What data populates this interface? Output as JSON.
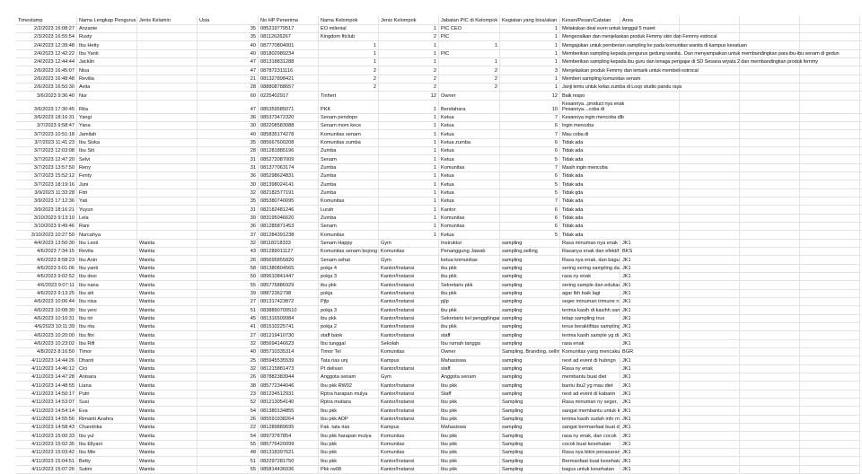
{
  "headers": [
    "Timestamp",
    "Nama Lengkap Pengurus",
    "Jenis Kelamin",
    "Usia",
    "No HP Penerima",
    "Nama Kelompok",
    "Jenis Kelompok",
    "Jabatan PIC di Kelompok",
    "Kegiatan yang bisa/akan",
    "Kesan/Pesan/Catatan",
    "Area"
  ],
  "rows": [
    [
      "2/2/2023 16:08:27",
      "Anzanie",
      "",
      "35",
      "085219779517",
      "EO milenial",
      "1",
      "PIC CEO",
      "1",
      "Melakukan deal even untuk tanggal 5 maret",
      ""
    ],
    [
      "2/3/2023 16:55:54",
      "Rusty",
      "",
      "35",
      "08112626267",
      "Kingdom fitclub",
      "2",
      "PIC",
      "1",
      "Mengenalkan dan menjelaskan produk Femmy skin dan Femmy estrocal",
      ""
    ],
    [
      "2/4/2023 12:39:48",
      "Ibu Hetty",
      "",
      "40",
      "087770804001",
      "1",
      "1",
      "1",
      "1",
      "Mengajukan untuk pemberian sampling ke pada komunitas wanita di kampus kesatuan",
      ""
    ],
    [
      "2/4/2023 12:42:22",
      "Ibu Yanti",
      "",
      "40",
      "081802989234",
      "1",
      "1",
      "PIC",
      "1",
      "Memberikan sampling kepada pengurus gedung wanita.. Dan menyampaikan untuk membandingkan para ibu-ibu senam di gedun",
      ""
    ],
    [
      "2/4/2023 12:44:44",
      "Jacklin",
      "",
      "47",
      "081318831288",
      "1",
      "1",
      "1",
      "1",
      "Memberikan sampling kepada ibu guru dan tenaga pengajar di SD Sesana wiyata 2 dan membandingkan produk femmy",
      ""
    ],
    [
      "2/6/2023 16:45:07",
      "Nisa",
      "",
      "47",
      "087872311116",
      "2",
      "2",
      "2",
      "3",
      "Menjelaskan produk Femmy dan tertarik untuk membeli estrocal",
      ""
    ],
    [
      "2/6/2023 16:48:48",
      "Revilia",
      "",
      "21",
      "081327898421",
      "2",
      "2",
      "2",
      "1",
      "Memberi sampling komunitas senam",
      ""
    ],
    [
      "2/6/2023 16:50:30",
      "Avita",
      "",
      "28",
      "088808788657",
      "2",
      "2",
      "2",
      "1",
      "Janji temu untuk kelas zumba di Loop studio pandu raya",
      ""
    ],
    [
      "3/6/2023 9:36:40",
      "Nur",
      "",
      "60",
      "0225402917",
      "Tinhert",
      "12",
      "Owner",
      "12",
      "Baik respo",
      ""
    ],
    [
      "3/6/2023 17:30:45",
      "Rita",
      "",
      "47",
      "085359585071",
      "PKK",
      "1",
      "Bendahara",
      "10",
      "Kesannya...product nya enak\nPesannya....coba di",
      ""
    ],
    [
      "3/6/2023 18:16:31",
      "Yangi",
      "",
      "36",
      "085373472320",
      "Senam pendopo",
      "1",
      "Ketua",
      "7",
      "Kesannya ingin mencoba dlb",
      ""
    ],
    [
      "3/7/2023 9:58:47",
      "Yana",
      "",
      "30",
      "082208583088",
      "Senam mom kece",
      "1",
      "Ketua",
      "6",
      "Ingin mencoba",
      ""
    ],
    [
      "3/7/2023 10:51:18",
      "Jamilah",
      "",
      "40",
      "085835174278",
      "Komunitas senam",
      "1",
      "Ketua",
      "7",
      "Mau coba di",
      ""
    ],
    [
      "3/7/2023 11:41:23",
      "Ibu Siska",
      "",
      "35",
      "085667600208",
      "Komunitas zumba",
      "1",
      "Ketua zumba",
      "6",
      "Tidak ada",
      ""
    ],
    [
      "3/7/2023 12:03:08",
      "Ibu Siti",
      "",
      "28",
      "081281885196",
      "Zumba",
      "1",
      "Ketua",
      "6",
      "Tidak ada",
      ""
    ],
    [
      "3/7/2023 12:47:20",
      "Selvi",
      "",
      "31",
      "085272087009",
      "Senam",
      "1",
      "Ketua",
      "5",
      "Tidak ada",
      ""
    ],
    [
      "3/7/2023 13:57:50",
      "Reny",
      "",
      "31",
      "081377063174",
      "Zumba",
      "1",
      "Komunitas",
      "7",
      "Masih ingin mencoba",
      ""
    ],
    [
      "3/7/2023 15:52:12",
      "Fenty",
      "",
      "36",
      "085298624831",
      "Zumba",
      "1",
      "Ketua",
      "6",
      "Tidak ada",
      ""
    ],
    [
      "3/7/2023 18:19:16",
      "Juni",
      "",
      "30",
      "081398024141",
      "Zumba",
      "1",
      "Ketua",
      "5",
      "Tidak ada",
      ""
    ],
    [
      "3/9/2023 11:33:28",
      "Fitri",
      "",
      "32",
      "082182577191",
      "Zumba",
      "1",
      "Ketua",
      "5",
      "Tidak qda",
      ""
    ],
    [
      "3/9/2023 17:12:36",
      "Yati",
      "",
      "35",
      "085380740095",
      "Komunitas",
      "1",
      "Ketua",
      "7",
      "Tidak ada",
      ""
    ],
    [
      "3/9/2023 18:16:21",
      "Yuyun",
      "",
      "31",
      "082182481246",
      "Lurah",
      "1",
      "Kantor",
      "6",
      "Tidak ada",
      ""
    ],
    [
      "3/10/2023 9:13:10",
      "Lela",
      "",
      "30",
      "083195046620",
      "Zumba",
      "1",
      "Komunitas",
      "6",
      "Tidak ada",
      ""
    ],
    [
      "3/10/2023 9:49:46",
      "Rani",
      "",
      "36",
      "081285871453",
      "Senam",
      "1",
      "Komunitas",
      "6",
      "Tidak ada",
      ""
    ],
    [
      "3/10/2023 10:27:50",
      "Nurcahya",
      "",
      "37",
      "081284391238",
      "Komunitas",
      "1",
      "Ketua",
      "5",
      "Tidak ada",
      ""
    ],
    [
      "4/4/2023 13:50:30",
      "Ibu Lesti",
      "Wanita",
      "32",
      "08118218333",
      "Senam Happy",
      "Gym",
      "Instruktur",
      "sampling",
      "Rasa minuman nya enak",
      "JK1"
    ],
    [
      "4/6/2023 7:34:15",
      "Revita",
      "Wanita",
      "43",
      "081289011127",
      "Komunitas senam bojong",
      "Komunitas",
      "Penanggung Jawab",
      "sampling,selling",
      "Rasanya enak dan efektif",
      "BKS"
    ],
    [
      "4/6/2023 8:58:23",
      "Ibu Anin",
      "Wanita",
      "26",
      "085695855820",
      "Senam sehat",
      "Gym",
      "ketua komunitas",
      "sampling",
      "Rasa nya enak, dan bagus",
      "JK1"
    ],
    [
      "4/6/2023 9:01:06",
      "Ibu yanti",
      "Wanita",
      "58",
      "081380804565",
      "pokja 4",
      "Kantor/Instansi",
      "ibu pkk",
      "sampling",
      "sering sering sampling dan",
      "JK1"
    ],
    [
      "4/6/2023 9:02:52",
      "Ibu desi",
      "Wanita",
      "50",
      "089610841447",
      "pokja 3",
      "Kantor/Instansi",
      "ibu pkk",
      "sampling",
      "rasa ny enak",
      "JK1"
    ],
    [
      "4/6/2023 9:07:11",
      "Ibu nana",
      "Wanita",
      "55",
      "085776886929",
      "ibu pkk",
      "Kantor/Instansi",
      "Sekretaris pkk",
      "sampling",
      "sering sample dan edukasi",
      "JK1"
    ],
    [
      "4/6/2023 9:13:25",
      "Ibu siti",
      "Wanita",
      "39",
      "08872362798",
      "pokja",
      "Kantor/Instansi",
      "ibu pkk",
      "sampling",
      "agar lbh baik lagi",
      "JK1"
    ],
    [
      "4/6/2023 10:06:44",
      "Ibu nisa",
      "Wanita",
      "27",
      "081317423872",
      "Pjlp",
      "Kantor/Instansi",
      "pjlp",
      "sampling",
      "seger minuman trimune n",
      "JK1"
    ],
    [
      "4/6/2023 10:08:30",
      "Ibu yeni",
      "Wanita",
      "51",
      "0838890700510",
      "pokja 3",
      "Kantor/Instansi",
      "ibu pkk",
      "sampling",
      "terima kasih di kasihh sam",
      "JK1"
    ],
    [
      "4/6/2023 10:10:31",
      "Ibu riri",
      "Wanita",
      "45",
      "081316509984",
      "ibu pkk",
      "Kantor/Instansi",
      "Sekretaris kel penggilingan",
      "sampling",
      "tetap sampling trus",
      "JK1"
    ],
    [
      "4/6/2023 10:11:39",
      "Ibu rita",
      "Wanita",
      "41",
      "081510225741",
      "pokja 2",
      "Kantor/Instansi",
      "ibu pkk",
      "sampling",
      "terus beraktifitas sampling",
      "JK1"
    ],
    [
      "4/6/2023 10:20:00",
      "Ibu fitri",
      "Wanita",
      "27",
      "081219410730",
      "staff bank",
      "Kantor/Instansi",
      "staff",
      "sampling",
      "terima kasih sample yg di",
      "JK1"
    ],
    [
      "4/6/2023 10:23:02",
      "Ibu Rifi",
      "Wanita",
      "32",
      "085694146623",
      "Ibu tunggal",
      "Sekolah",
      "Ibu rumah tangga",
      "sampling",
      "rasa enak",
      "JK1"
    ],
    [
      "4/8/2023 8:16:50",
      "Timor",
      "Wanita",
      "40",
      "085710335314",
      "Timor Tel",
      "Komunitas",
      "Owner",
      "Sampling, Branding, selling",
      "Komunitas yang mencakup",
      "BGR"
    ],
    [
      "4/11/2023 14:44:26",
      "Dhanti",
      "Wanita",
      "25",
      "085945535539",
      "Tata rias unj",
      "Kampus",
      "Mahasiswa",
      "sampling",
      "next ad event di hubngn",
      "JK1"
    ],
    [
      "4/11/2023 14:46:12",
      "Cici",
      "Wanita",
      "32",
      "081215881473",
      "Pt delisari",
      "Kantor/Instansi",
      "staff",
      "sampling",
      "Rasa ny enak",
      "JK1"
    ],
    [
      "4/11/2023 14:47:28",
      "Anisara",
      "Wanita",
      "26",
      "087882383944",
      "Anggota senam",
      "Gym",
      "Anggota senam",
      "sampling",
      "membantu buat diet",
      "JK1"
    ],
    [
      "4/11/2023 14:48:55",
      "Liana",
      "Wanita",
      "38",
      "085772344046",
      "Ibu pkk RW02",
      "Kantor/Instansi",
      "Ibu pkk",
      "sampling",
      "bantu ibu2 yg mau diet",
      "JK1"
    ],
    [
      "4/11/2023 14:50:17",
      "Putri",
      "Wanita",
      "23",
      "081234512931",
      "Rptra harapan mulya",
      "Kantor/Instansi",
      "Staff",
      "sampling",
      "next ad event di kabarin",
      "JK1"
    ],
    [
      "4/11/2023 14:53:07",
      "Susi",
      "Wanita",
      "52",
      "081213054140",
      "Rptra mutiara",
      "Kantor/Instansi",
      "Ibu pkk",
      "Sampling",
      "Rasa minuman ny seger,",
      "JK1"
    ],
    [
      "4/11/2023 14:54:14",
      "Eva",
      "Wanita",
      "54",
      "081380134855",
      "Ibu pkk",
      "Kantor/Instansi",
      "Ibu pkk",
      "Sampling",
      "sangat membantu untuk k",
      "JK1"
    ],
    [
      "4/11/2023 14:55:56",
      "Rimanti Azahra",
      "Wanita",
      "26",
      "085591938264",
      "Ibu pkk ADP",
      "Kantor/Instansi",
      "Ibu pkk",
      "Sampling",
      "terima kasih sudah info m",
      "JK1"
    ],
    [
      "4/11/2023 14:58:43",
      "Chandrika",
      "Wanita",
      "22",
      "081289889695",
      "Fak. tata rias",
      "Kampus",
      "Mahasiswa",
      "sampling",
      "sangat bermanfaat buat d",
      "JK1"
    ],
    [
      "4/11/2023 15:00:33",
      "Ibu yul",
      "Wanita",
      "54",
      "08973787854",
      "Ibu pkk harapan mulya",
      "Komunitas",
      "Ibu pkk",
      "Sampling",
      "rasa ny enak, dan cocok",
      "JK1"
    ],
    [
      "4/11/2023 15:02:35",
      "Ibu Ellyani",
      "Wanita",
      "55",
      "085776420099",
      "Ibu pkk",
      "Komunitas",
      "Ibu pkk",
      "Sampling",
      "cocok buat kesehatan",
      "JK1"
    ],
    [
      "4/11/2023 15:03:42",
      "Ibu Mie",
      "Wanita",
      "48",
      "081318397621",
      "Ibu pkk",
      "Komunitas",
      "Ibu pkk",
      "Sampling",
      "Rasa nya bikin penasaran",
      "JK1"
    ],
    [
      "4/11/2023 15:04:51",
      "Betty",
      "Wanita",
      "51",
      "082297281750",
      "Ibu pkk",
      "Kantor/Instansi",
      "Ibu pkk",
      "Sampling",
      "Bermanfaat buat kesehatan",
      "JK1"
    ],
    [
      "4/11/2023 15:07:26",
      "Sutini",
      "Wanita",
      "55",
      "085814436036",
      "Pkk rw08",
      "Kantor/Instansi",
      "Ibu pkk",
      "Sampling",
      "bagus untuk kesehatan",
      "JK1"
    ]
  ]
}
